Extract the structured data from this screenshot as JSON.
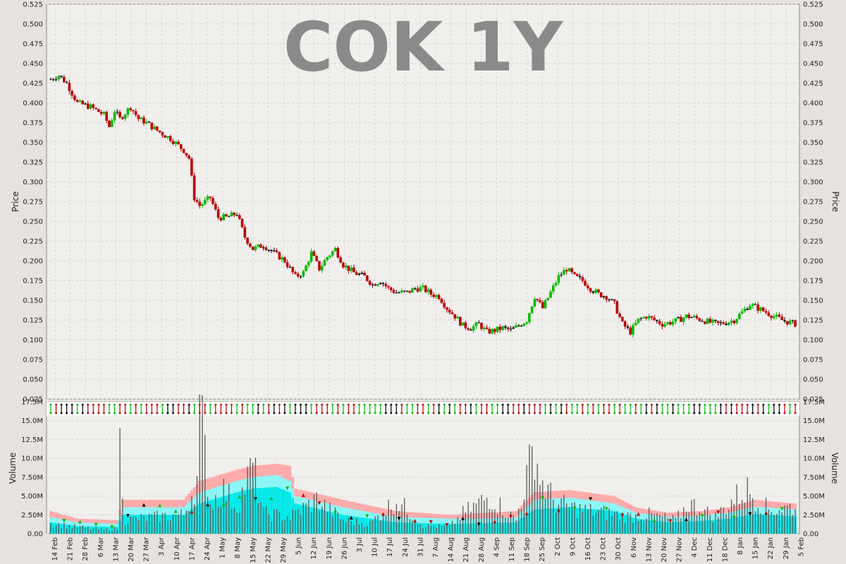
{
  "chart_data": [
    {
      "type": "candlestick",
      "title": "COK 1Y",
      "ylabel": "Price",
      "ylim": [
        0.025,
        0.525
      ],
      "y_ticks": [
        "0.025",
        "0.050",
        "0.075",
        "0.100",
        "0.125",
        "0.150",
        "0.175",
        "0.200",
        "0.225",
        "0.250",
        "0.275",
        "0.300",
        "0.325",
        "0.350",
        "0.375",
        "0.400",
        "0.425",
        "0.450",
        "0.475",
        "0.500",
        "0.525"
      ],
      "x_date_labels": [
        "14 Feb",
        "21 Feb",
        "28 Feb",
        "6 Mar",
        "13 Mar",
        "20 Mar",
        "27 Mar",
        "3 Apr",
        "10 Apr",
        "17 Apr",
        "24 Apr",
        "1 May",
        "8 May",
        "15 May",
        "22 May",
        "29 May",
        "5 Jun",
        "12 Jun",
        "19 Jun",
        "26 Jun",
        "3 Jul",
        "10 Jul",
        "17 Jul",
        "24 Jul",
        "31 Jul",
        "7 Aug",
        "14 Aug",
        "21 Aug",
        "28 Aug",
        "4 Sep",
        "11 Sep",
        "18 Sep",
        "25 Sep",
        "2 Oct",
        "9 Oct",
        "16 Oct",
        "23 Oct",
        "30 Oct",
        "6 Nov",
        "13 Nov",
        "20 Nov",
        "27 Nov",
        "4 Dec",
        "11 Dec",
        "18 Dec",
        "8 Jan",
        "15 Jan",
        "22 Jan",
        "29 Jan",
        "5 Feb"
      ],
      "close_path": [
        [
          0,
          0.43
        ],
        [
          3,
          0.435
        ],
        [
          6,
          0.425
        ],
        [
          10,
          0.4
        ],
        [
          15,
          0.395
        ],
        [
          20,
          0.385
        ],
        [
          22,
          0.37
        ],
        [
          24,
          0.39
        ],
        [
          26,
          0.38
        ],
        [
          30,
          0.395
        ],
        [
          33,
          0.38
        ],
        [
          36,
          0.375
        ],
        [
          40,
          0.365
        ],
        [
          45,
          0.355
        ],
        [
          50,
          0.34
        ],
        [
          52,
          0.33
        ],
        [
          54,
          0.28
        ],
        [
          56,
          0.27
        ],
        [
          58,
          0.275
        ],
        [
          60,
          0.28
        ],
        [
          63,
          0.255
        ],
        [
          66,
          0.255
        ],
        [
          70,
          0.26
        ],
        [
          73,
          0.23
        ],
        [
          76,
          0.215
        ],
        [
          80,
          0.22
        ],
        [
          84,
          0.21
        ],
        [
          88,
          0.2
        ],
        [
          92,
          0.18
        ],
        [
          95,
          0.185
        ],
        [
          98,
          0.21
        ],
        [
          101,
          0.19
        ],
        [
          104,
          0.205
        ],
        [
          107,
          0.215
        ],
        [
          110,
          0.195
        ],
        [
          114,
          0.185
        ],
        [
          118,
          0.18
        ],
        [
          121,
          0.17
        ],
        [
          124,
          0.175
        ],
        [
          127,
          0.165
        ],
        [
          130,
          0.16
        ],
        [
          134,
          0.16
        ],
        [
          137,
          0.165
        ],
        [
          140,
          0.165
        ],
        [
          143,
          0.158
        ],
        [
          146,
          0.155
        ],
        [
          149,
          0.14
        ],
        [
          152,
          0.13
        ],
        [
          155,
          0.118
        ],
        [
          158,
          0.115
        ],
        [
          161,
          0.12
        ],
        [
          164,
          0.11
        ],
        [
          167,
          0.112
        ],
        [
          170,
          0.115
        ],
        [
          173,
          0.112
        ],
        [
          176,
          0.118
        ],
        [
          179,
          0.125
        ],
        [
          182,
          0.155
        ],
        [
          185,
          0.14
        ],
        [
          188,
          0.16
        ],
        [
          191,
          0.18
        ],
        [
          194,
          0.19
        ],
        [
          197,
          0.18
        ],
        [
          200,
          0.175
        ],
        [
          203,
          0.165
        ],
        [
          206,
          0.158
        ],
        [
          209,
          0.155
        ],
        [
          212,
          0.145
        ],
        [
          215,
          0.12
        ],
        [
          218,
          0.11
        ],
        [
          221,
          0.125
        ],
        [
          224,
          0.13
        ],
        [
          227,
          0.125
        ],
        [
          230,
          0.12
        ],
        [
          233,
          0.122
        ],
        [
          236,
          0.125
        ],
        [
          239,
          0.13
        ],
        [
          242,
          0.128
        ],
        [
          245,
          0.125
        ],
        [
          248,
          0.122
        ],
        [
          251,
          0.12
        ],
        [
          254,
          0.122
        ],
        [
          257,
          0.125
        ],
        [
          260,
          0.135
        ],
        [
          263,
          0.145
        ],
        [
          266,
          0.14
        ],
        [
          269,
          0.135
        ],
        [
          272,
          0.13
        ],
        [
          275,
          0.125
        ],
        [
          278,
          0.122
        ],
        [
          280,
          0.12
        ]
      ],
      "total_bars": 281
    },
    {
      "type": "bar",
      "ylabel": "Volume",
      "ylim": [
        0,
        17500000
      ],
      "y_ticks": [
        "0.00",
        "2.50M",
        "5.00M",
        "7.50M",
        "10.0M",
        "12.5M",
        "15.0M",
        "17.5M"
      ],
      "volume_path": [
        [
          0,
          1.5
        ],
        [
          10,
          1.0
        ],
        [
          20,
          0.6
        ],
        [
          25,
          0.8
        ],
        [
          26,
          13.0
        ],
        [
          28,
          2.0
        ],
        [
          40,
          2.5
        ],
        [
          50,
          2.8
        ],
        [
          55,
          8.0
        ],
        [
          56,
          16.5
        ],
        [
          57,
          15.5
        ],
        [
          60,
          4.5
        ],
        [
          65,
          6.5
        ],
        [
          70,
          4.0
        ],
        [
          76,
          10.0
        ],
        [
          80,
          3.0
        ],
        [
          90,
          2.5
        ],
        [
          100,
          5.0
        ],
        [
          110,
          2.0
        ],
        [
          120,
          1.5
        ],
        [
          130,
          5.0
        ],
        [
          140,
          1.2
        ],
        [
          150,
          1.0
        ],
        [
          155,
          3.0
        ],
        [
          165,
          5.5
        ],
        [
          175,
          2.0
        ],
        [
          182,
          13.0
        ],
        [
          184,
          8.0
        ],
        [
          190,
          4.5
        ],
        [
          200,
          3.5
        ],
        [
          210,
          3.0
        ],
        [
          218,
          2.5
        ],
        [
          225,
          2.8
        ],
        [
          235,
          2.0
        ],
        [
          240,
          4.5
        ],
        [
          250,
          2.5
        ],
        [
          258,
          5.5
        ],
        [
          262,
          6.5
        ],
        [
          270,
          3.5
        ],
        [
          280,
          4.0
        ]
      ],
      "bands_path": [
        [
          0,
          3.0,
          2.2,
          1.5
        ],
        [
          10,
          2.0,
          1.5,
          1.0
        ],
        [
          25,
          1.8,
          1.3,
          0.9
        ],
        [
          27,
          4.5,
          3.5,
          2.5
        ],
        [
          50,
          4.5,
          3.5,
          2.5
        ],
        [
          56,
          7.0,
          5.5,
          4.0
        ],
        [
          70,
          8.5,
          7.0,
          5.5
        ],
        [
          76,
          9.0,
          7.5,
          6.0
        ],
        [
          85,
          9.3,
          7.8,
          6.2
        ],
        [
          90,
          9.0,
          7.0,
          5.5
        ],
        [
          92,
          6.0,
          5.0,
          4.0
        ],
        [
          110,
          4.5,
          3.5,
          2.5
        ],
        [
          130,
          3.0,
          2.2,
          1.5
        ],
        [
          150,
          2.5,
          2.0,
          1.3
        ],
        [
          165,
          2.8,
          2.0,
          1.4
        ],
        [
          175,
          3.0,
          2.2,
          1.5
        ],
        [
          182,
          5.5,
          4.5,
          3.2
        ],
        [
          195,
          5.8,
          4.8,
          3.5
        ],
        [
          212,
          5.0,
          4.0,
          3.0
        ],
        [
          220,
          3.5,
          2.8,
          2.0
        ],
        [
          232,
          2.8,
          2.2,
          1.5
        ],
        [
          245,
          3.0,
          2.4,
          1.7
        ],
        [
          255,
          3.5,
          2.8,
          2.0
        ],
        [
          265,
          4.5,
          3.6,
          2.6
        ],
        [
          280,
          4.0,
          3.2,
          2.3
        ]
      ]
    }
  ],
  "colors": {
    "up": "#00bb00",
    "down": "#bb0000",
    "neutral": "#000000",
    "band_outer": "#ffaaaa",
    "band_mid": "#88f8f8",
    "band_inner": "#00e8e8",
    "volume_bar": "#5a5a5a",
    "panel_bg": "#f0efec",
    "grid": "#d4d4d4"
  }
}
